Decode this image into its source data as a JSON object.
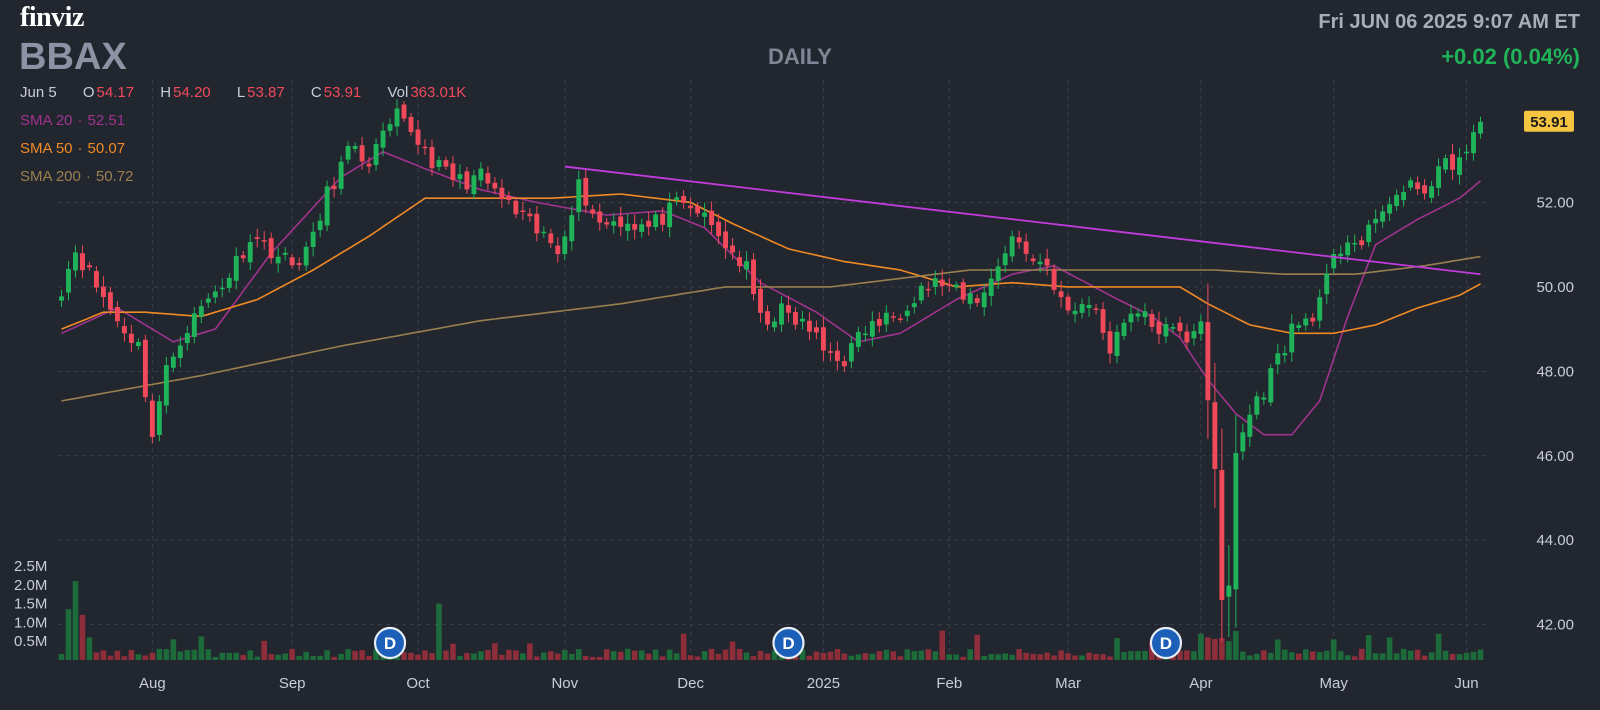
{
  "header": {
    "logo": "finviz",
    "ticker": "BBAX",
    "period": "DAILY",
    "datetime": "Fri JUN 06 2025 9:07 AM ET",
    "change": "+0.02 (0.04%)"
  },
  "ohlc": {
    "date": "Jun 5",
    "open_label": "O",
    "open": "54.17",
    "high_label": "H",
    "high": "54.20",
    "low_label": "L",
    "low": "53.87",
    "close_label": "C",
    "close": "53.91",
    "vol_label": "Vol",
    "vol": "363.01K"
  },
  "indicators": [
    {
      "label": "SMA 20",
      "sep": "·",
      "value": "52.51",
      "color": "#a0338f"
    },
    {
      "label": "SMA 50",
      "sep": "·",
      "value": "50.07",
      "color": "#f08a24"
    },
    {
      "label": "SMA 200",
      "sep": "·",
      "value": "50.72",
      "color": "#9a8050"
    }
  ],
  "colors": {
    "background": "#22262f",
    "up": "#1fb45a",
    "down": "#f0495a",
    "trendline": "#c23bdc",
    "grid": "#3a3f4b",
    "badge": "#f5c542"
  },
  "chart_data": {
    "type": "candlestick",
    "symbol": "BBAX",
    "last_price": "53.91",
    "y_ticks": [
      "42.00",
      "44.00",
      "46.00",
      "48.00",
      "50.00",
      "52.00"
    ],
    "ylim": [
      41.4,
      54.9
    ],
    "x_ticks": [
      "Aug",
      "Sep",
      "Oct",
      "Nov",
      "Dec",
      "2025",
      "Feb",
      "Mar",
      "Apr",
      "May",
      "Jun"
    ],
    "x_tick_day_index": [
      13,
      33,
      51,
      72,
      90,
      109,
      127,
      144,
      163,
      182,
      201
    ],
    "volume_ticks": [
      "0.5M",
      "1.0M",
      "1.5M",
      "2.0M",
      "2.5M"
    ],
    "volume_max": 2.5,
    "dividend_marker": "D",
    "dividend_day_index": [
      47,
      104,
      158
    ],
    "anchors": [
      [
        0,
        50.0
      ],
      [
        2,
        50.9
      ],
      [
        4,
        50.3
      ],
      [
        8,
        49.2
      ],
      [
        11,
        48.6
      ],
      [
        13,
        46.5
      ],
      [
        15,
        48.0
      ],
      [
        17,
        48.8
      ],
      [
        20,
        49.5
      ],
      [
        24,
        50.3
      ],
      [
        27,
        51.2
      ],
      [
        30,
        50.9
      ],
      [
        33,
        50.5
      ],
      [
        36,
        51.1
      ],
      [
        38,
        52.2
      ],
      [
        41,
        53.2
      ],
      [
        44,
        53.0
      ],
      [
        48,
        54.0
      ],
      [
        50,
        53.7
      ],
      [
        54,
        52.8
      ],
      [
        57,
        52.5
      ],
      [
        60,
        52.6
      ],
      [
        64,
        51.9
      ],
      [
        68,
        51.3
      ],
      [
        71,
        50.9
      ],
      [
        74,
        52.4
      ],
      [
        77,
        51.5
      ],
      [
        80,
        51.6
      ],
      [
        84,
        51.4
      ],
      [
        88,
        51.9
      ],
      [
        91,
        51.8
      ],
      [
        94,
        51.2
      ],
      [
        98,
        50.4
      ],
      [
        100,
        49.2
      ],
      [
        103,
        49.4
      ],
      [
        107,
        49.0
      ],
      [
        109,
        48.5
      ],
      [
        112,
        48.3
      ],
      [
        115,
        49.0
      ],
      [
        119,
        49.3
      ],
      [
        123,
        50.0
      ],
      [
        126,
        50.1
      ],
      [
        129,
        49.7
      ],
      [
        132,
        49.8
      ],
      [
        134,
        50.6
      ],
      [
        136,
        51.2
      ],
      [
        138,
        50.8
      ],
      [
        141,
        50.5
      ],
      [
        144,
        49.3
      ],
      [
        147,
        49.7
      ],
      [
        150,
        48.6
      ],
      [
        153,
        49.5
      ],
      [
        156,
        49.1
      ],
      [
        159,
        48.9
      ],
      [
        161,
        48.8
      ],
      [
        163,
        49.3
      ],
      [
        165,
        45.5
      ],
      [
        166,
        42.5
      ],
      [
        167,
        42.9
      ],
      [
        168,
        46.1
      ],
      [
        170,
        47.0
      ],
      [
        172,
        47.6
      ],
      [
        174,
        48.3
      ],
      [
        176,
        49.0
      ],
      [
        178,
        49.2
      ],
      [
        180,
        49.6
      ],
      [
        182,
        50.6
      ],
      [
        184,
        51.2
      ],
      [
        186,
        51.0
      ],
      [
        188,
        51.5
      ],
      [
        190,
        52.1
      ],
      [
        192,
        52.2
      ],
      [
        194,
        52.4
      ],
      [
        196,
        52.4
      ],
      [
        198,
        52.9
      ],
      [
        201,
        53.1
      ],
      [
        203,
        53.91
      ]
    ],
    "n_days": 204,
    "sma": [
      {
        "name": "SMA 20",
        "color": "#a0338f",
        "points": [
          [
            0,
            48.9
          ],
          [
            8,
            49.5
          ],
          [
            16,
            48.7
          ],
          [
            22,
            49.0
          ],
          [
            30,
            50.8
          ],
          [
            40,
            52.6
          ],
          [
            46,
            53.2
          ],
          [
            52,
            52.8
          ],
          [
            60,
            52.3
          ],
          [
            68,
            52.0
          ],
          [
            78,
            51.7
          ],
          [
            86,
            51.8
          ],
          [
            92,
            51.4
          ],
          [
            100,
            50.1
          ],
          [
            108,
            49.4
          ],
          [
            114,
            48.7
          ],
          [
            120,
            48.9
          ],
          [
            128,
            49.7
          ],
          [
            136,
            50.3
          ],
          [
            142,
            50.5
          ],
          [
            150,
            49.8
          ],
          [
            156,
            49.3
          ],
          [
            160,
            48.8
          ],
          [
            164,
            47.8
          ],
          [
            168,
            47.0
          ],
          [
            172,
            46.5
          ],
          [
            176,
            46.5
          ],
          [
            180,
            47.3
          ],
          [
            184,
            49.3
          ],
          [
            188,
            51.0
          ],
          [
            194,
            51.6
          ],
          [
            200,
            52.1
          ],
          [
            203,
            52.51
          ]
        ]
      },
      {
        "name": "SMA 50",
        "color": "#f08a24",
        "points": [
          [
            0,
            49.0
          ],
          [
            6,
            49.4
          ],
          [
            12,
            49.4
          ],
          [
            20,
            49.3
          ],
          [
            28,
            49.7
          ],
          [
            36,
            50.4
          ],
          [
            44,
            51.2
          ],
          [
            52,
            52.1
          ],
          [
            60,
            52.1
          ],
          [
            70,
            52.1
          ],
          [
            80,
            52.2
          ],
          [
            90,
            52.0
          ],
          [
            96,
            51.5
          ],
          [
            104,
            50.9
          ],
          [
            112,
            50.6
          ],
          [
            120,
            50.4
          ],
          [
            128,
            50.0
          ],
          [
            136,
            50.1
          ],
          [
            144,
            50.0
          ],
          [
            152,
            50.0
          ],
          [
            160,
            50.0
          ],
          [
            164,
            49.6
          ],
          [
            170,
            49.1
          ],
          [
            176,
            48.9
          ],
          [
            182,
            48.9
          ],
          [
            188,
            49.1
          ],
          [
            194,
            49.5
          ],
          [
            200,
            49.8
          ],
          [
            203,
            50.07
          ]
        ]
      },
      {
        "name": "SMA 200",
        "color": "#9a8050",
        "points": [
          [
            0,
            47.3
          ],
          [
            20,
            47.9
          ],
          [
            40,
            48.6
          ],
          [
            60,
            49.2
          ],
          [
            80,
            49.6
          ],
          [
            95,
            50.0
          ],
          [
            110,
            50.0
          ],
          [
            130,
            50.4
          ],
          [
            150,
            50.4
          ],
          [
            165,
            50.4
          ],
          [
            175,
            50.3
          ],
          [
            185,
            50.3
          ],
          [
            195,
            50.5
          ],
          [
            203,
            50.72
          ]
        ]
      }
    ],
    "trendline": {
      "from": [
        72,
        52.85
      ],
      "to": [
        203,
        50.3
      ]
    }
  }
}
